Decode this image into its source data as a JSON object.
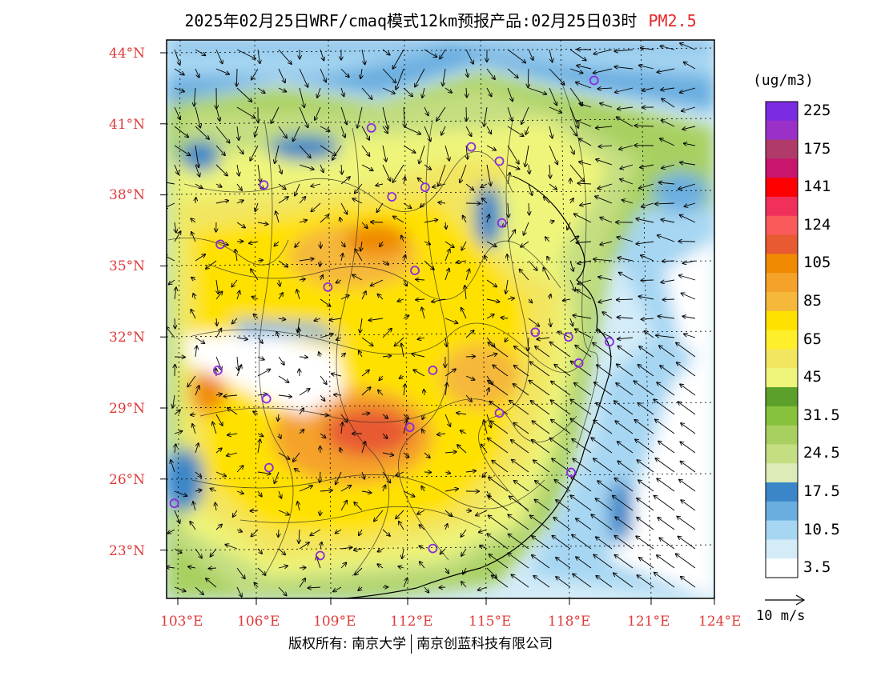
{
  "title": {
    "main": "2025年02月25日WRF/cmaq模式12km预报产品:02月25日03时",
    "pollutant": "PM2.5"
  },
  "map": {
    "lat_labels": [
      "44°N",
      "41°N",
      "38°N",
      "35°N",
      "32°N",
      "29°N",
      "26°N",
      "23°N"
    ],
    "lon_labels": [
      "103°E",
      "106°E",
      "109°E",
      "112°E",
      "115°E",
      "118°E",
      "121°E",
      "124°E"
    ],
    "accent_color": "#e03a3a",
    "city_marker_color": "#8a2be2",
    "city_markers": [
      {
        "lon": 119.3,
        "lat": 42.8
      },
      {
        "lon": 110.6,
        "lat": 40.8
      },
      {
        "lon": 114.5,
        "lat": 40.0
      },
      {
        "lon": 115.6,
        "lat": 39.4
      },
      {
        "lon": 106.4,
        "lat": 38.4
      },
      {
        "lon": 111.4,
        "lat": 37.9
      },
      {
        "lon": 112.7,
        "lat": 38.3
      },
      {
        "lon": 115.7,
        "lat": 36.8
      },
      {
        "lon": 104.7,
        "lat": 35.9
      },
      {
        "lon": 112.3,
        "lat": 34.8
      },
      {
        "lon": 108.9,
        "lat": 34.1
      },
      {
        "lon": 117.0,
        "lat": 32.2
      },
      {
        "lon": 118.3,
        "lat": 32.0
      },
      {
        "lon": 119.9,
        "lat": 31.8
      },
      {
        "lon": 118.7,
        "lat": 30.9
      },
      {
        "lon": 113.0,
        "lat": 30.6
      },
      {
        "lon": 104.6,
        "lat": 30.6
      },
      {
        "lon": 106.5,
        "lat": 29.4
      },
      {
        "lon": 115.6,
        "lat": 28.8
      },
      {
        "lon": 112.1,
        "lat": 28.2
      },
      {
        "lon": 118.4,
        "lat": 26.3
      },
      {
        "lon": 106.6,
        "lat": 26.5
      },
      {
        "lon": 102.9,
        "lat": 25.0
      },
      {
        "lon": 113.0,
        "lat": 23.1
      },
      {
        "lon": 108.6,
        "lat": 22.8
      }
    ]
  },
  "legend": {
    "units": "(ug/m3)",
    "bins": [
      {
        "color": "#7b2be2",
        "label": "225"
      },
      {
        "color": "#9b30c8",
        "label": ""
      },
      {
        "color": "#b03a6a",
        "label": "175"
      },
      {
        "color": "#c8156e",
        "label": ""
      },
      {
        "color": "#ff0000",
        "label": "141"
      },
      {
        "color": "#f0305a",
        "label": ""
      },
      {
        "color": "#fa5a5a",
        "label": "124"
      },
      {
        "color": "#e85a32",
        "label": ""
      },
      {
        "color": "#f08a00",
        "label": "105"
      },
      {
        "color": "#f5a22a",
        "label": ""
      },
      {
        "color": "#f5b83a",
        "label": "85"
      },
      {
        "color": "#ffe100",
        "label": ""
      },
      {
        "color": "#ffef2a",
        "label": "65"
      },
      {
        "color": "#f2e560",
        "label": ""
      },
      {
        "color": "#eef57a",
        "label": "45"
      },
      {
        "color": "#5aa02a",
        "label": ""
      },
      {
        "color": "#86c23c",
        "label": "31.5"
      },
      {
        "color": "#a8d060",
        "label": ""
      },
      {
        "color": "#c4de82",
        "label": "24.5"
      },
      {
        "color": "#dcebb8",
        "label": ""
      },
      {
        "color": "#3a86c8",
        "label": "17.5"
      },
      {
        "color": "#6aaee0",
        "label": ""
      },
      {
        "color": "#a6d6f2",
        "label": "10.5"
      },
      {
        "color": "#d4ecf8",
        "label": ""
      },
      {
        "color": "#ffffff",
        "label": "3.5"
      }
    ]
  },
  "wind_reference": "10 m/s",
  "copyright": {
    "left": "版权所有: 南京大学",
    "right": "南京创蓝科技有限公司"
  }
}
